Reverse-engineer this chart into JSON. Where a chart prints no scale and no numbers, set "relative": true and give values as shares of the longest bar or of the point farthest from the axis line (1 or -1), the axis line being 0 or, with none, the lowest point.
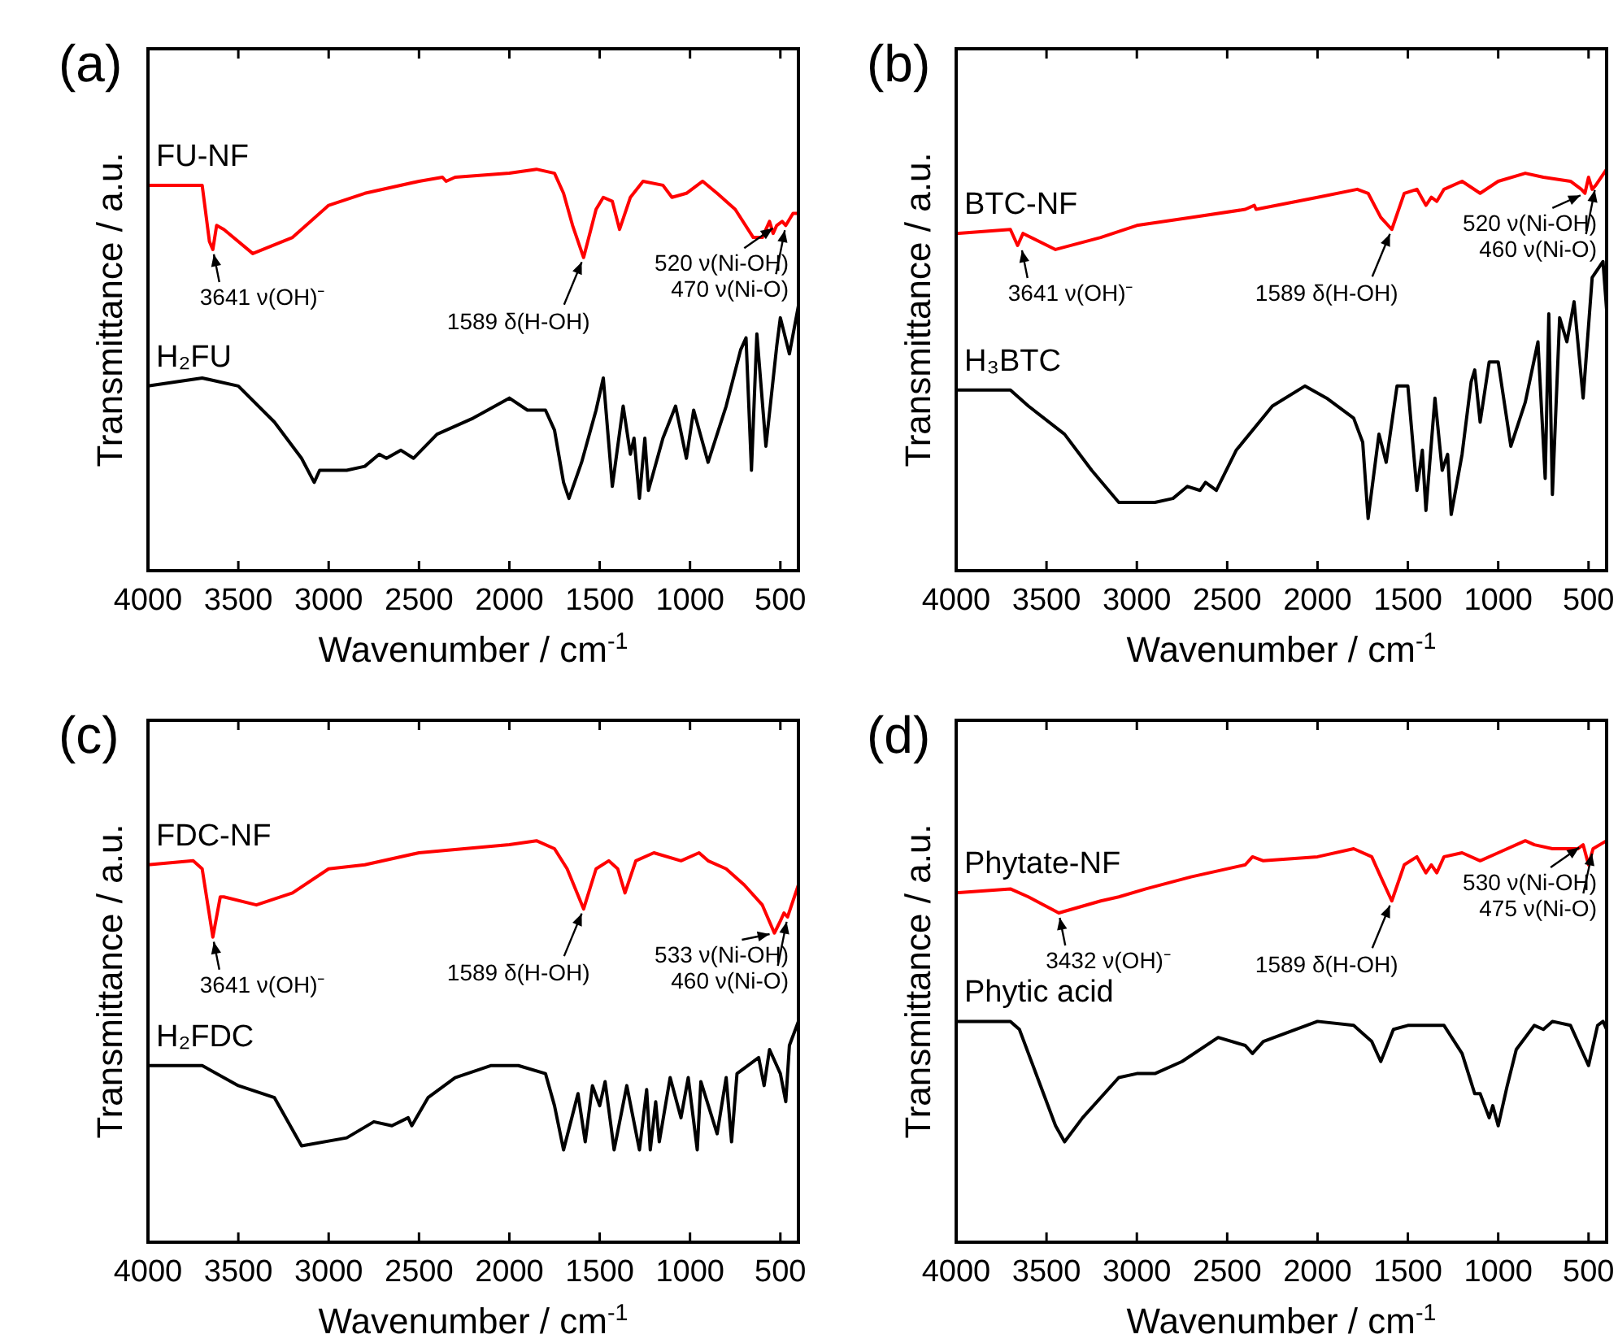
{
  "chart_data": [
    {
      "type": "line",
      "title": "(a)",
      "xlabel": "Wavenumber / cm$^{-1}$",
      "ylabel": "Transmittance / a.u.",
      "relative": true,
      "legend": "left",
      "tick_labels": "x",
      "xlim": [
        4000,
        400
      ],
      "xticks": [
        4000,
        3500,
        3000,
        2500,
        2000,
        1500,
        1000,
        500
      ],
      "series": [
        {
          "name": "FU-NF",
          "color": "#ff0000",
          "x": [
            4000,
            3700,
            3660,
            3641,
            3620,
            3580,
            3420,
            3200,
            3000,
            2800,
            2500,
            2370,
            2350,
            2300,
            2000,
            1850,
            1750,
            1700,
            1650,
            1589,
            1520,
            1480,
            1430,
            1390,
            1330,
            1260,
            1150,
            1100,
            1020,
            930,
            850,
            750,
            650,
            600,
            560,
            540,
            520,
            490,
            470,
            430,
            400
          ],
          "values": [
            0.96,
            0.96,
            0.82,
            0.8,
            0.86,
            0.85,
            0.79,
            0.83,
            0.91,
            0.94,
            0.97,
            0.98,
            0.97,
            0.98,
            0.99,
            1,
            0.99,
            0.94,
            0.86,
            0.78,
            0.9,
            0.93,
            0.92,
            0.85,
            0.93,
            0.97,
            0.96,
            0.93,
            0.94,
            0.97,
            0.94,
            0.9,
            0.83,
            0.83,
            0.87,
            0.84,
            0.86,
            0.87,
            0.86,
            0.89,
            0.89
          ]
        },
        {
          "name": "H₂FU",
          "color": "#000000",
          "x": [
            4000,
            3700,
            3500,
            3300,
            3150,
            3080,
            3050,
            2900,
            2800,
            2720,
            2680,
            2600,
            2530,
            2400,
            2200,
            2000,
            1900,
            1800,
            1750,
            1700,
            1670,
            1600,
            1520,
            1480,
            1430,
            1370,
            1330,
            1310,
            1280,
            1250,
            1230,
            1150,
            1080,
            1020,
            980,
            900,
            800,
            720,
            690,
            660,
            630,
            580,
            520,
            500,
            450,
            400
          ],
          "values": [
            0.46,
            0.48,
            0.46,
            0.37,
            0.28,
            0.22,
            0.25,
            0.25,
            0.26,
            0.29,
            0.28,
            0.3,
            0.28,
            0.34,
            0.38,
            0.43,
            0.4,
            0.4,
            0.35,
            0.22,
            0.18,
            0.27,
            0.4,
            0.48,
            0.21,
            0.41,
            0.29,
            0.33,
            0.18,
            0.33,
            0.2,
            0.33,
            0.41,
            0.28,
            0.4,
            0.27,
            0.41,
            0.55,
            0.58,
            0.25,
            0.59,
            0.31,
            0.56,
            0.63,
            0.54,
            0.66
          ]
        }
      ],
      "annotations": [
        {
          "text": "3641 ν(OH)⁻",
          "x": 3641,
          "y": 0.8
        },
        {
          "text": "1589 δ(H-OH)",
          "x": 1589,
          "y": 0.78
        },
        {
          "text": "520 ν(Ni-OH)",
          "x": 520,
          "y": 0.86
        },
        {
          "text": "470 ν(Ni-O)",
          "x": 470,
          "y": 0.86
        }
      ]
    },
    {
      "type": "line",
      "title": "(b)",
      "xlabel": "Wavenumber / cm$^{-1}$",
      "ylabel": "Transmittance / a.u.",
      "relative": true,
      "legend": "left",
      "tick_labels": "x",
      "xlim": [
        4000,
        400
      ],
      "xticks": [
        4000,
        3500,
        3000,
        2500,
        2000,
        1500,
        1000,
        500
      ],
      "series": [
        {
          "name": "BTC-NF",
          "color": "#ff0000",
          "x": [
            4000,
            3700,
            3660,
            3630,
            3450,
            3200,
            3000,
            2700,
            2400,
            2350,
            2340,
            2000,
            1780,
            1720,
            1650,
            1589,
            1520,
            1450,
            1400,
            1370,
            1340,
            1300,
            1200,
            1100,
            1000,
            850,
            750,
            600,
            540,
            520,
            500,
            480,
            460,
            400
          ],
          "values": [
            0.84,
            0.85,
            0.81,
            0.84,
            0.8,
            0.83,
            0.86,
            0.88,
            0.9,
            0.91,
            0.9,
            0.93,
            0.95,
            0.94,
            0.88,
            0.85,
            0.94,
            0.95,
            0.91,
            0.93,
            0.92,
            0.95,
            0.97,
            0.94,
            0.97,
            0.99,
            0.98,
            0.97,
            0.95,
            0.94,
            0.98,
            0.95,
            0.96,
            1
          ]
        },
        {
          "name": "H₃BTC",
          "color": "#000000",
          "x": [
            4000,
            3700,
            3600,
            3400,
            3250,
            3100,
            2900,
            2800,
            2720,
            2650,
            2620,
            2560,
            2450,
            2250,
            2070,
            1950,
            1800,
            1750,
            1720,
            1660,
            1620,
            1560,
            1500,
            1450,
            1420,
            1400,
            1350,
            1310,
            1280,
            1260,
            1200,
            1150,
            1130,
            1100,
            1050,
            1000,
            930,
            850,
            780,
            740,
            720,
            700,
            660,
            620,
            580,
            530,
            480,
            420,
            400
          ],
          "values": [
            0.45,
            0.45,
            0.41,
            0.34,
            0.25,
            0.17,
            0.17,
            0.18,
            0.21,
            0.2,
            0.22,
            0.2,
            0.3,
            0.41,
            0.46,
            0.43,
            0.38,
            0.32,
            0.13,
            0.34,
            0.27,
            0.46,
            0.46,
            0.2,
            0.3,
            0.15,
            0.43,
            0.25,
            0.29,
            0.14,
            0.29,
            0.47,
            0.5,
            0.37,
            0.52,
            0.52,
            0.31,
            0.42,
            0.57,
            0.23,
            0.64,
            0.19,
            0.63,
            0.57,
            0.67,
            0.43,
            0.73,
            0.77,
            0.65
          ]
        }
      ],
      "annotations": [
        {
          "text": "3641 ν(OH)⁻",
          "x": 3641,
          "y": 0.81
        },
        {
          "text": "1589 δ(H-OH)",
          "x": 1589,
          "y": 0.85
        },
        {
          "text": "520 ν(Ni-OH)",
          "x": 520,
          "y": 0.94
        },
        {
          "text": "460 ν(Ni-O)",
          "x": 460,
          "y": 0.96
        }
      ]
    },
    {
      "type": "line",
      "title": "(c)",
      "xlabel": "Wavenumber / cm$^{-1}$",
      "ylabel": "Transmittance / a.u.",
      "relative": true,
      "legend": "left",
      "tick_labels": "x",
      "xlim": [
        4000,
        400
      ],
      "xticks": [
        4000,
        3500,
        3000,
        2500,
        2000,
        1500,
        1000,
        500
      ],
      "series": [
        {
          "name": "FDC-NF",
          "color": "#ff0000",
          "x": [
            4000,
            3750,
            3700,
            3641,
            3600,
            3580,
            3400,
            3200,
            3000,
            2800,
            2500,
            2000,
            1850,
            1750,
            1680,
            1589,
            1520,
            1450,
            1400,
            1360,
            1300,
            1200,
            1050,
            950,
            900,
            800,
            700,
            600,
            533,
            500,
            480,
            460,
            400
          ],
          "values": [
            0.94,
            0.95,
            0.93,
            0.76,
            0.86,
            0.86,
            0.84,
            0.87,
            0.93,
            0.94,
            0.97,
            0.99,
            1,
            0.98,
            0.93,
            0.83,
            0.93,
            0.95,
            0.93,
            0.87,
            0.95,
            0.97,
            0.95,
            0.97,
            0.95,
            0.93,
            0.89,
            0.84,
            0.77,
            0.8,
            0.82,
            0.81,
            0.89
          ]
        },
        {
          "name": "H₂FDC",
          "color": "#000000",
          "x": [
            4000,
            3700,
            3500,
            3300,
            3150,
            2900,
            2750,
            2650,
            2560,
            2540,
            2450,
            2300,
            2100,
            1950,
            1800,
            1750,
            1700,
            1620,
            1580,
            1540,
            1500,
            1470,
            1420,
            1350,
            1280,
            1240,
            1220,
            1190,
            1170,
            1110,
            1050,
            1010,
            960,
            940,
            850,
            800,
            770,
            740,
            620,
            590,
            560,
            500,
            470,
            450,
            400
          ],
          "values": [
            0.44,
            0.44,
            0.39,
            0.36,
            0.24,
            0.26,
            0.3,
            0.29,
            0.31,
            0.29,
            0.36,
            0.41,
            0.44,
            0.44,
            0.42,
            0.34,
            0.23,
            0.37,
            0.25,
            0.39,
            0.34,
            0.4,
            0.23,
            0.39,
            0.23,
            0.38,
            0.23,
            0.35,
            0.25,
            0.41,
            0.31,
            0.41,
            0.23,
            0.4,
            0.27,
            0.41,
            0.25,
            0.42,
            0.46,
            0.39,
            0.48,
            0.42,
            0.35,
            0.49,
            0.55
          ]
        }
      ],
      "annotations": [
        {
          "text": "3641 ν(OH)⁻",
          "x": 3641,
          "y": 0.76
        },
        {
          "text": "1589 δ(H-OH)",
          "x": 1589,
          "y": 0.83
        },
        {
          "text": "533 ν(Ni-OH)",
          "x": 533,
          "y": 0.77
        },
        {
          "text": "460 ν(Ni-O)",
          "x": 460,
          "y": 0.81
        }
      ]
    },
    {
      "type": "line",
      "title": "(d)",
      "xlabel": "Wavenumber / cm$^{-1}$",
      "ylabel": "Transmittance / a.u.",
      "relative": true,
      "legend": "left",
      "tick_labels": "x",
      "xlim": [
        4000,
        400
      ],
      "xticks": [
        4000,
        3500,
        3000,
        2500,
        2000,
        1500,
        1000,
        500
      ],
      "series": [
        {
          "name": "Phytate-NF",
          "color": "#ff0000",
          "x": [
            4000,
            3700,
            3600,
            3432,
            3200,
            3100,
            2950,
            2700,
            2400,
            2360,
            2300,
            2000,
            1800,
            1700,
            1650,
            1589,
            1520,
            1450,
            1400,
            1370,
            1340,
            1300,
            1200,
            1100,
            1000,
            850,
            800,
            700,
            560,
            530,
            500,
            475,
            400
          ],
          "values": [
            0.87,
            0.88,
            0.86,
            0.82,
            0.85,
            0.86,
            0.88,
            0.91,
            0.94,
            0.96,
            0.95,
            0.96,
            0.98,
            0.96,
            0.91,
            0.85,
            0.94,
            0.96,
            0.92,
            0.94,
            0.92,
            0.96,
            0.97,
            0.95,
            0.97,
            1,
            0.99,
            0.98,
            0.98,
            0.99,
            0.94,
            0.98,
            1
          ]
        },
        {
          "name": "Phytic acid",
          "color": "#000000",
          "x": [
            4000,
            3700,
            3650,
            3550,
            3450,
            3400,
            3300,
            3100,
            3000,
            2900,
            2750,
            2550,
            2400,
            2360,
            2300,
            2000,
            1800,
            1700,
            1650,
            1580,
            1500,
            1300,
            1200,
            1130,
            1100,
            1050,
            1030,
            1000,
            950,
            900,
            800,
            750,
            700,
            600,
            500,
            450,
            420,
            400
          ],
          "values": [
            0.55,
            0.55,
            0.53,
            0.41,
            0.29,
            0.25,
            0.31,
            0.41,
            0.42,
            0.42,
            0.45,
            0.51,
            0.49,
            0.47,
            0.5,
            0.55,
            0.54,
            0.5,
            0.45,
            0.53,
            0.54,
            0.54,
            0.47,
            0.37,
            0.37,
            0.31,
            0.34,
            0.29,
            0.39,
            0.48,
            0.54,
            0.53,
            0.55,
            0.54,
            0.44,
            0.54,
            0.55,
            0.53
          ]
        }
      ],
      "annotations": [
        {
          "text": "3432 ν(OH)⁻",
          "x": 3432,
          "y": 0.82
        },
        {
          "text": "1589 δ(H-OH)",
          "x": 1589,
          "y": 0.85
        },
        {
          "text": "530 ν(Ni-OH)",
          "x": 530,
          "y": 0.99
        },
        {
          "text": "475 ν(Ni-O)",
          "x": 475,
          "y": 0.98
        }
      ]
    }
  ]
}
